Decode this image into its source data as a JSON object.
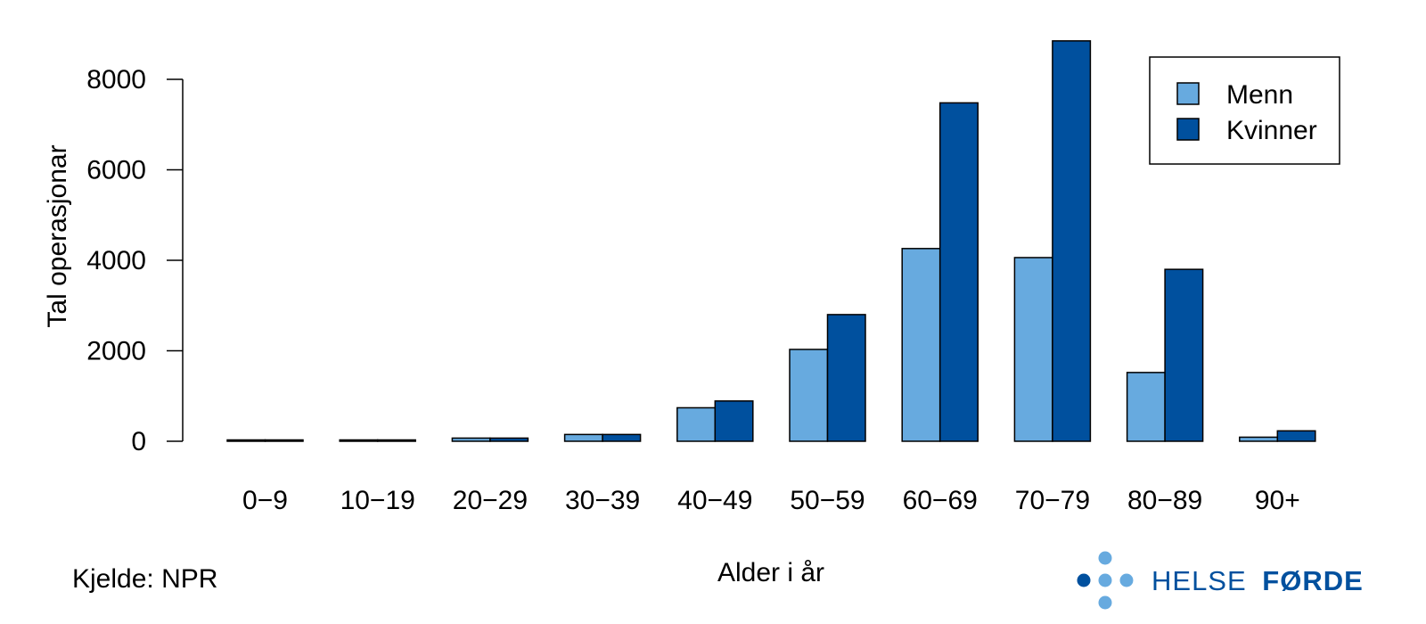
{
  "chart_data": {
    "type": "bar",
    "categories": [
      "0−9",
      "10−19",
      "20−29",
      "30−39",
      "40−49",
      "50−59",
      "60−69",
      "70−79",
      "80−89",
      "90+"
    ],
    "series": [
      {
        "name": "Menn",
        "color": "#67aadf",
        "values": [
          5,
          20,
          70,
          150,
          740,
          2030,
          4260,
          4060,
          1520,
          90
        ]
      },
      {
        "name": "Kvinner",
        "color": "#00509e",
        "values": [
          5,
          20,
          70,
          150,
          890,
          2800,
          7480,
          8850,
          3800,
          230
        ]
      }
    ],
    "xlabel": "Alder i år",
    "ylabel": "Tal operasjonar",
    "yticks": [
      0,
      2000,
      4000,
      6000,
      8000
    ],
    "ylim": [
      0,
      8900
    ],
    "legend_placement": "top-right",
    "grid": false
  },
  "source_note": "Kjelde: NPR",
  "logo": {
    "text_regular": "HELSE",
    "text_bold": "FØRDE",
    "dot_dark_color": "#00509e",
    "dot_light_color": "#67aadf",
    "text_color": "#00509e"
  }
}
